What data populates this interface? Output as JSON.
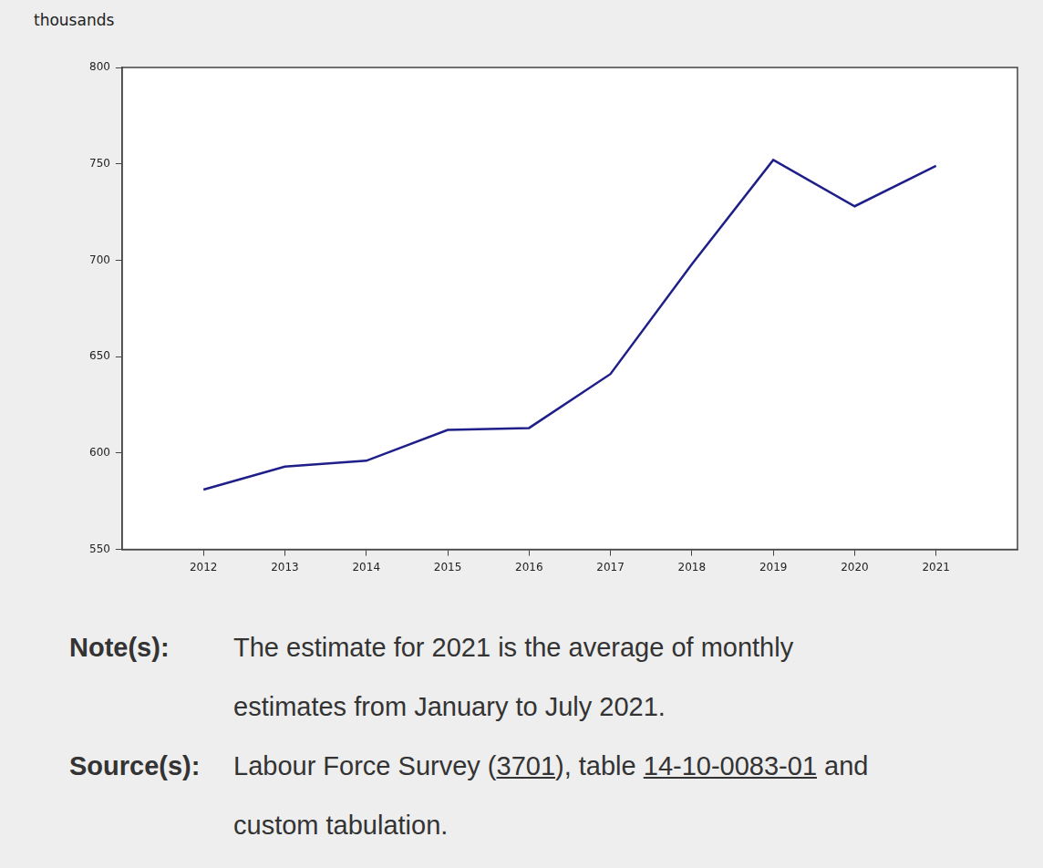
{
  "chart_data": {
    "type": "line",
    "y_label": "thousands",
    "x": [
      2012,
      2013,
      2014,
      2015,
      2016,
      2017,
      2018,
      2019,
      2020,
      2021
    ],
    "values": [
      581,
      593,
      596,
      612,
      613,
      641,
      698,
      752,
      728,
      749
    ],
    "color": "#1f1f8a",
    "marker": "none",
    "line_style": "solid",
    "grid": false,
    "xlim": [
      2011,
      2022
    ],
    "xticks": [
      2012,
      2013,
      2014,
      2015,
      2016,
      2017,
      2018,
      2019,
      2020,
      2021
    ],
    "ylim": [
      550,
      800
    ],
    "yticks": [
      550,
      600,
      650,
      700,
      750,
      800
    ]
  },
  "notes": [
    {
      "label": "Note(s):",
      "parts": [
        "The estimate for 2021 is the average of monthly estimates from January to July 2021."
      ]
    },
    {
      "label": "Source(s):",
      "parts": [
        "Labour Force Survey (",
        {
          "link": "3701"
        },
        "), table ",
        {
          "link": "14-10-0083-01"
        },
        " and custom tabulation."
      ]
    }
  ]
}
